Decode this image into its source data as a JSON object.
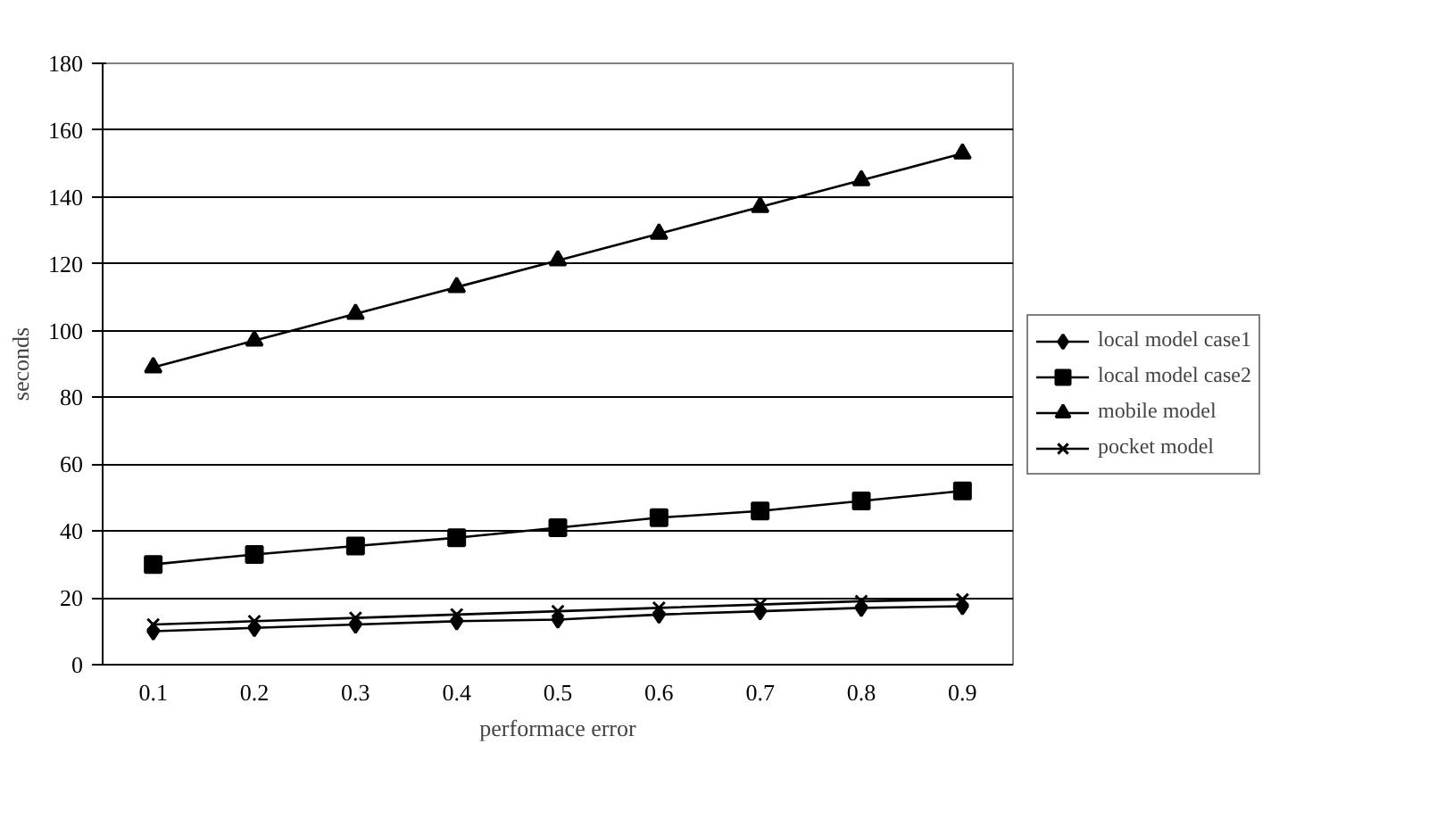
{
  "chart_data": {
    "type": "line",
    "xlabel": "performace error",
    "ylabel": "seconds",
    "categories": [
      "0.1",
      "0.2",
      "0.3",
      "0.4",
      "0.5",
      "0.6",
      "0.7",
      "0.8",
      "0.9"
    ],
    "series": [
      {
        "name": "local model case1",
        "color": "#000000",
        "marker": "diamond",
        "values": [
          10,
          11,
          12,
          13,
          13.5,
          15,
          16,
          17,
          17.5
        ]
      },
      {
        "name": "local model case2",
        "color": "#000000",
        "marker": "square",
        "values": [
          30,
          33,
          35.5,
          38,
          41,
          44,
          46,
          49,
          52
        ]
      },
      {
        "name": "mobile model",
        "color": "#000000",
        "marker": "triangle",
        "values": [
          89,
          97,
          105,
          113,
          121,
          129,
          137,
          145,
          153
        ]
      },
      {
        "name": "pocket model",
        "color": "#000000",
        "marker": "cross",
        "values": [
          12,
          13,
          14,
          15,
          16,
          17,
          18,
          19,
          19.5
        ]
      }
    ],
    "ylim": [
      0,
      180
    ],
    "yticks": [
      0,
      20,
      40,
      60,
      80,
      100,
      120,
      140,
      160,
      180
    ],
    "grid": "y",
    "legend": "right",
    "line_style": "solid"
  }
}
